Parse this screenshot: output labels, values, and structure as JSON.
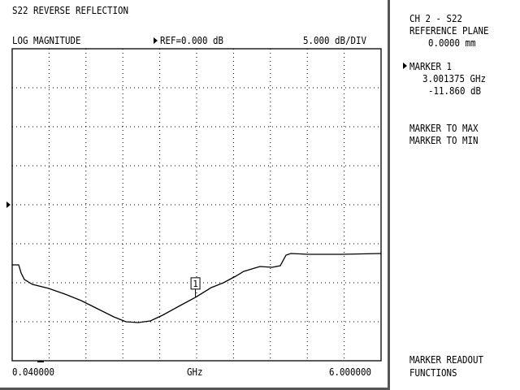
{
  "header": {
    "title": "S22 REVERSE REFLECTION",
    "format": "LOG MAGNITUDE",
    "reference": "REF=0.000 dB",
    "scale": "5.000 dB/DIV"
  },
  "axis": {
    "start": "0.040000",
    "unit": "GHz",
    "stop": "6.000000"
  },
  "side_panel": {
    "channel": "CH 2 - S22",
    "reference_plane_label": "REFERENCE PLANE",
    "reference_plane_value": "0.0000 mm",
    "marker_label": "MARKER 1",
    "marker_freq": "3.001375 GHz",
    "marker_value": "-11.860 dB",
    "menu": [
      "MARKER TO MAX",
      "MARKER TO MIN"
    ],
    "footer": [
      "MARKER READOUT",
      "FUNCTIONS"
    ]
  },
  "chart_data": {
    "type": "line",
    "xlim": [
      0.04,
      6.0
    ],
    "ylim": [
      -20,
      20
    ],
    "reference_dB": 0,
    "dB_per_div": 5,
    "grid": true,
    "x_unit": "GHz",
    "marker": {
      "label": "1",
      "x": 3.001375,
      "y": -11.86
    },
    "series": [
      {
        "x": [
          0.04,
          0.145,
          0.184,
          0.237,
          0.368,
          0.631,
          0.893,
          1.156,
          1.418,
          1.681,
          1.878,
          2.075,
          2.272,
          2.469,
          2.731,
          3.001,
          3.256,
          3.453,
          3.65,
          3.781,
          4.044,
          4.241,
          4.372,
          4.464,
          4.543,
          4.832,
          5.357,
          6.0
        ],
        "y": [
          -7.71,
          -7.71,
          -8.75,
          -9.58,
          -10.21,
          -10.73,
          -11.46,
          -12.29,
          -13.33,
          -14.38,
          -15.0,
          -15.1,
          -14.9,
          -14.17,
          -13.02,
          -11.86,
          -10.63,
          -10.0,
          -9.17,
          -8.54,
          -7.92,
          -8.02,
          -7.81,
          -6.46,
          -6.25,
          -6.35,
          -6.35,
          -6.25
        ]
      }
    ]
  }
}
